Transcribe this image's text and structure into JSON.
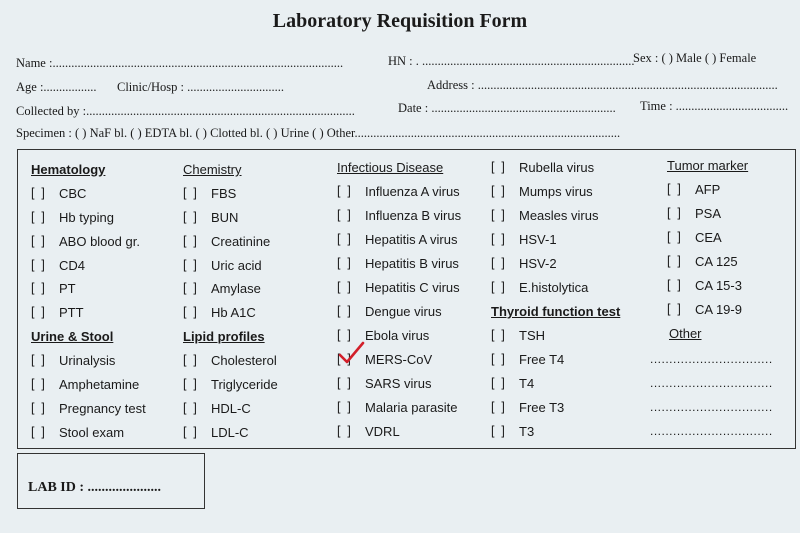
{
  "form": {
    "title": "Laboratory Requisition Form",
    "line1": {
      "name": "Name :.............................................................................................",
      "hn": "HN : . ....................................................................",
      "sex": "Sex : (  ) Male   (  ) Female"
    },
    "line2": {
      "age": "Age :.................",
      "clinic": "Clinic/Hosp : ...............................",
      "address": "Address : ................................................................................................"
    },
    "line3": {
      "collected": "Collected by :......................................................................................",
      "date": "Date : ...........................................................",
      "time": "Time : ...................................."
    },
    "line4": {
      "specimen": "Specimen : (  ) NaF bl.     (  ) EDTA bl.     (  ) Clotted bl.     (  ) Urine     (  ) Other....................................................................................."
    },
    "lab_id": "LAB ID : ....................."
  },
  "panel": {
    "checkbox": "[  ]",
    "hematology": {
      "heading": "Hematology",
      "items": [
        "CBC",
        "Hb typing",
        "ABO blood gr.",
        "CD4",
        "PT",
        "PTT"
      ]
    },
    "urine_stool": {
      "heading": "Urine & Stool",
      "items": [
        "Urinalysis",
        "Amphetamine",
        "Pregnancy test",
        "Stool exam"
      ]
    },
    "chemistry": {
      "heading": "Chemistry",
      "items": [
        "FBS",
        "BUN",
        "Creatinine",
        "Uric acid",
        "Amylase",
        "Hb A1C"
      ]
    },
    "lipid": {
      "heading": "Lipid profiles",
      "items": [
        "Cholesterol",
        "Triglyceride",
        "HDL-C",
        "LDL-C"
      ]
    },
    "infectious": {
      "heading": "Infectious Disease",
      "items": [
        "Influenza A virus",
        "Influenza B virus",
        "Hepatitis A virus",
        "Hepatitis B virus",
        "Hepatitis C virus",
        "Dengue virus",
        "Ebola virus",
        "MERS-CoV",
        "SARS virus",
        "Malaria parasite",
        "VDRL"
      ],
      "checked": "MERS-CoV"
    },
    "col4": {
      "items": [
        "Rubella virus",
        "Mumps virus",
        "Measles virus",
        "HSV-1",
        "HSV-2",
        "E.histolytica"
      ]
    },
    "thyroid": {
      "heading": "Thyroid function test",
      "items": [
        "TSH",
        "Free T4",
        "T4",
        "Free T3",
        "T3"
      ]
    },
    "tumor": {
      "heading": "Tumor marker",
      "items": [
        "AFP",
        "PSA",
        "CEA",
        "CA 125",
        "CA 15-3",
        "CA 19-9"
      ]
    },
    "other": {
      "heading": "Other",
      "lines": [
        "................................",
        "................................",
        "................................",
        "................................"
      ]
    }
  },
  "colors": {
    "check_mark": "#d21f2a",
    "paper": "#e9eff2"
  }
}
